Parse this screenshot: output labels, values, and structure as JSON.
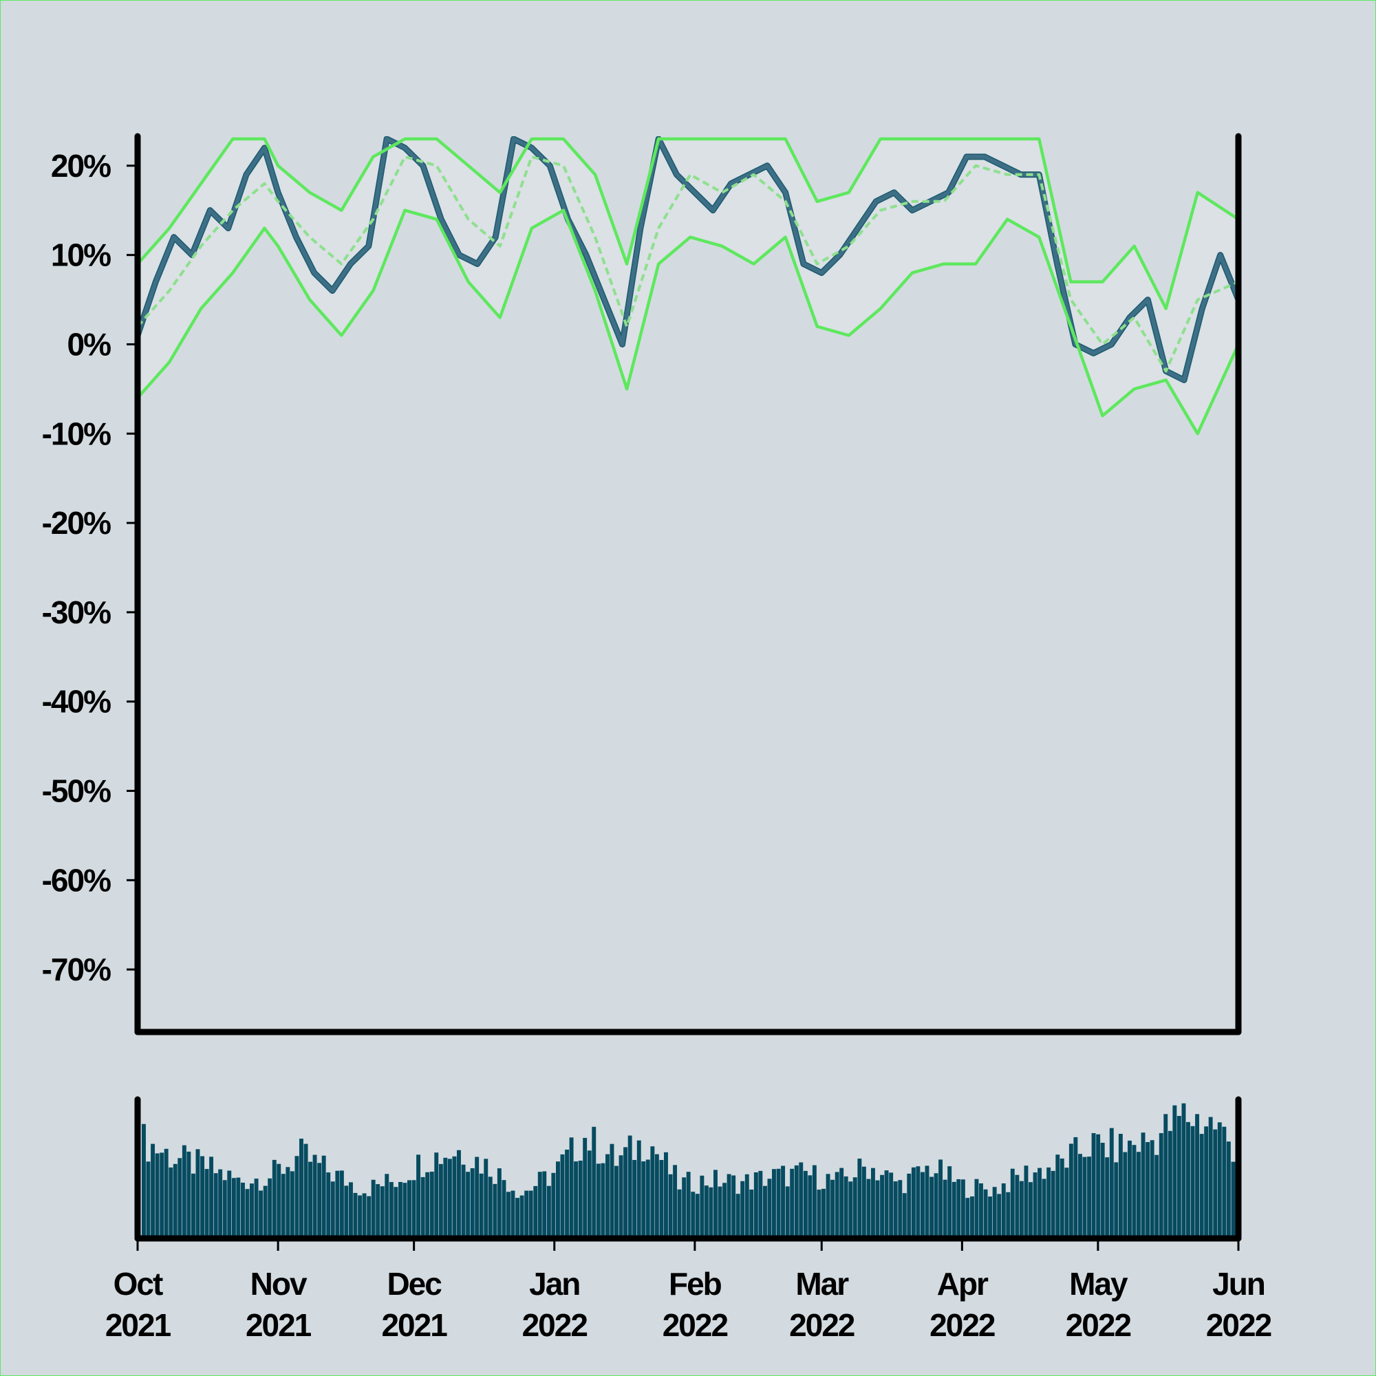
{
  "chart_data": [
    {
      "type": "line",
      "y_unit": "%",
      "ylim": [
        -77,
        23.3
      ],
      "y_ticks": [
        "20%",
        "10%",
        "0%",
        "-10%",
        "-20%",
        "-30%",
        "-40%",
        "-50%",
        "-60%",
        "-70%"
      ],
      "y_tick_values": [
        20,
        10,
        0,
        -10,
        -20,
        -30,
        -40,
        -50,
        -60,
        -70
      ],
      "xlim": [
        "2021-10-01",
        "2022-06-01"
      ],
      "x_ticks": [
        {
          "date": "2021-10-01",
          "month": "Oct",
          "year": "2021"
        },
        {
          "date": "2021-11-01",
          "month": "Nov",
          "year": "2021"
        },
        {
          "date": "2021-12-01",
          "month": "Dec",
          "year": "2021"
        },
        {
          "date": "2022-01-01",
          "month": "Jan",
          "year": "2022"
        },
        {
          "date": "2022-02-01",
          "month": "Feb",
          "year": "2022"
        },
        {
          "date": "2022-03-01",
          "month": "Mar",
          "year": "2022"
        },
        {
          "date": "2022-04-01",
          "month": "Apr",
          "year": "2022"
        },
        {
          "date": "2022-05-01",
          "month": "May",
          "year": "2022"
        },
        {
          "date": "2022-06-01",
          "month": "Jun",
          "year": "2022"
        }
      ],
      "grid": false,
      "series": [
        {
          "role": "value",
          "color": "#3d6f86",
          "points": [
            [
              "2021-10-01",
              1
            ],
            [
              "2021-10-05",
              7
            ],
            [
              "2021-10-09",
              12
            ],
            [
              "2021-10-13",
              10
            ],
            [
              "2021-10-17",
              15
            ],
            [
              "2021-10-21",
              13
            ],
            [
              "2021-10-25",
              19
            ],
            [
              "2021-10-29",
              22
            ],
            [
              "2021-11-01",
              17
            ],
            [
              "2021-11-05",
              12
            ],
            [
              "2021-11-09",
              8
            ],
            [
              "2021-11-13",
              6
            ],
            [
              "2021-11-17",
              9
            ],
            [
              "2021-11-21",
              11
            ],
            [
              "2021-11-25",
              23
            ],
            [
              "2021-11-29",
              22
            ],
            [
              "2021-12-03",
              20
            ],
            [
              "2021-12-07",
              14
            ],
            [
              "2021-12-11",
              10
            ],
            [
              "2021-12-15",
              9
            ],
            [
              "2021-12-19",
              12
            ],
            [
              "2021-12-23",
              23
            ],
            [
              "2021-12-27",
              22
            ],
            [
              "2021-12-31",
              20
            ],
            [
              "2022-01-04",
              14
            ],
            [
              "2022-01-08",
              10
            ],
            [
              "2022-01-12",
              5
            ],
            [
              "2022-01-16",
              0
            ],
            [
              "2022-01-20",
              13
            ],
            [
              "2022-01-24",
              23
            ],
            [
              "2022-01-28",
              19
            ],
            [
              "2022-02-01",
              17
            ],
            [
              "2022-02-05",
              15
            ],
            [
              "2022-02-09",
              18
            ],
            [
              "2022-02-13",
              19
            ],
            [
              "2022-02-17",
              20
            ],
            [
              "2022-02-21",
              17
            ],
            [
              "2022-02-25",
              9
            ],
            [
              "2022-03-01",
              8
            ],
            [
              "2022-03-05",
              10
            ],
            [
              "2022-03-09",
              13
            ],
            [
              "2022-03-13",
              16
            ],
            [
              "2022-03-17",
              17
            ],
            [
              "2022-03-21",
              15
            ],
            [
              "2022-03-25",
              16
            ],
            [
              "2022-03-29",
              17
            ],
            [
              "2022-04-02",
              21
            ],
            [
              "2022-04-06",
              21
            ],
            [
              "2022-04-10",
              20
            ],
            [
              "2022-04-14",
              19
            ],
            [
              "2022-04-18",
              19
            ],
            [
              "2022-04-22",
              9
            ],
            [
              "2022-04-26",
              0
            ],
            [
              "2022-04-30",
              -1
            ],
            [
              "2022-05-04",
              0
            ],
            [
              "2022-05-08",
              3
            ],
            [
              "2022-05-12",
              5
            ],
            [
              "2022-05-16",
              -3
            ],
            [
              "2022-05-20",
              -4
            ],
            [
              "2022-05-24",
              4
            ],
            [
              "2022-05-28",
              10
            ],
            [
              "2022-06-01",
              5
            ]
          ]
        },
        {
          "role": "moving-average",
          "color": "#8ee08e",
          "dashed": true,
          "points": [
            [
              "2021-10-01",
              2
            ],
            [
              "2021-10-08",
              6
            ],
            [
              "2021-10-15",
              11
            ],
            [
              "2021-10-22",
              15
            ],
            [
              "2021-10-29",
              18
            ],
            [
              "2021-11-01",
              16
            ],
            [
              "2021-11-08",
              12
            ],
            [
              "2021-11-15",
              9
            ],
            [
              "2021-11-22",
              14
            ],
            [
              "2021-11-29",
              21
            ],
            [
              "2021-12-06",
              20
            ],
            [
              "2021-12-13",
              14
            ],
            [
              "2021-12-20",
              11
            ],
            [
              "2021-12-27",
              21
            ],
            [
              "2022-01-03",
              20
            ],
            [
              "2022-01-10",
              12
            ],
            [
              "2022-01-17",
              2
            ],
            [
              "2022-01-24",
              13
            ],
            [
              "2022-01-31",
              19
            ],
            [
              "2022-02-07",
              17
            ],
            [
              "2022-02-14",
              19
            ],
            [
              "2022-02-21",
              16
            ],
            [
              "2022-02-28",
              9
            ],
            [
              "2022-03-07",
              11
            ],
            [
              "2022-03-14",
              15
            ],
            [
              "2022-03-21",
              16
            ],
            [
              "2022-03-28",
              16
            ],
            [
              "2022-04-04",
              20
            ],
            [
              "2022-04-11",
              19
            ],
            [
              "2022-04-18",
              19
            ],
            [
              "2022-04-25",
              5
            ],
            [
              "2022-05-02",
              0
            ],
            [
              "2022-05-09",
              3
            ],
            [
              "2022-05-16",
              -3
            ],
            [
              "2022-05-23",
              5
            ],
            [
              "2022-06-01",
              7
            ]
          ]
        },
        {
          "role": "upper-band",
          "color": "#5ee85e",
          "points": [
            [
              "2021-10-01",
              9
            ],
            [
              "2021-10-08",
              13
            ],
            [
              "2021-10-15",
              18
            ],
            [
              "2021-10-22",
              23
            ],
            [
              "2021-10-29",
              23
            ],
            [
              "2021-11-01",
              20
            ],
            [
              "2021-11-08",
              17
            ],
            [
              "2021-11-15",
              15
            ],
            [
              "2021-11-22",
              21
            ],
            [
              "2021-11-29",
              23
            ],
            [
              "2021-12-06",
              23
            ],
            [
              "2021-12-13",
              20
            ],
            [
              "2021-12-20",
              17
            ],
            [
              "2021-12-27",
              23
            ],
            [
              "2022-01-03",
              23
            ],
            [
              "2022-01-10",
              19
            ],
            [
              "2022-01-17",
              9
            ],
            [
              "2022-01-24",
              23
            ],
            [
              "2022-01-31",
              23
            ],
            [
              "2022-02-07",
              23
            ],
            [
              "2022-02-14",
              23
            ],
            [
              "2022-02-21",
              23
            ],
            [
              "2022-02-28",
              16
            ],
            [
              "2022-03-07",
              17
            ],
            [
              "2022-03-14",
              23
            ],
            [
              "2022-03-21",
              23
            ],
            [
              "2022-03-28",
              23
            ],
            [
              "2022-04-04",
              23
            ],
            [
              "2022-04-11",
              23
            ],
            [
              "2022-04-18",
              23
            ],
            [
              "2022-04-25",
              7
            ],
            [
              "2022-05-02",
              7
            ],
            [
              "2022-05-09",
              11
            ],
            [
              "2022-05-16",
              4
            ],
            [
              "2022-05-23",
              17
            ],
            [
              "2022-06-01",
              14
            ]
          ]
        },
        {
          "role": "lower-band",
          "color": "#5ee85e",
          "points": [
            [
              "2021-10-01",
              -6
            ],
            [
              "2021-10-08",
              -2
            ],
            [
              "2021-10-15",
              4
            ],
            [
              "2021-10-22",
              8
            ],
            [
              "2021-10-29",
              13
            ],
            [
              "2021-11-01",
              11
            ],
            [
              "2021-11-08",
              5
            ],
            [
              "2021-11-15",
              1
            ],
            [
              "2021-11-22",
              6
            ],
            [
              "2021-11-29",
              15
            ],
            [
              "2021-12-06",
              14
            ],
            [
              "2021-12-13",
              7
            ],
            [
              "2021-12-20",
              3
            ],
            [
              "2021-12-27",
              13
            ],
            [
              "2022-01-03",
              15
            ],
            [
              "2022-01-10",
              6
            ],
            [
              "2022-01-17",
              -5
            ],
            [
              "2022-01-24",
              9
            ],
            [
              "2022-01-31",
              12
            ],
            [
              "2022-02-07",
              11
            ],
            [
              "2022-02-14",
              9
            ],
            [
              "2022-02-21",
              12
            ],
            [
              "2022-02-28",
              2
            ],
            [
              "2022-03-07",
              1
            ],
            [
              "2022-03-14",
              4
            ],
            [
              "2022-03-21",
              8
            ],
            [
              "2022-03-28",
              9
            ],
            [
              "2022-04-04",
              9
            ],
            [
              "2022-04-11",
              14
            ],
            [
              "2022-04-18",
              12
            ],
            [
              "2022-04-25",
              2
            ],
            [
              "2022-05-02",
              -8
            ],
            [
              "2022-05-09",
              -5
            ],
            [
              "2022-05-16",
              -4
            ],
            [
              "2022-05-23",
              -10
            ],
            [
              "2022-06-01",
              0
            ]
          ]
        }
      ]
    },
    {
      "type": "bar",
      "color": "#074b60",
      "xlim": [
        "2021-10-01",
        "2022-06-01"
      ],
      "y_ticks": [],
      "weekly_values": [
        75,
        62,
        55,
        44,
        48,
        64,
        50,
        38,
        45,
        62,
        68,
        55,
        35,
        50,
        78,
        60,
        76,
        42,
        45,
        43,
        48,
        50,
        44,
        56,
        42,
        55,
        40,
        38,
        50,
        56,
        72,
        70,
        76,
        95,
        88,
        58
      ]
    }
  ]
}
